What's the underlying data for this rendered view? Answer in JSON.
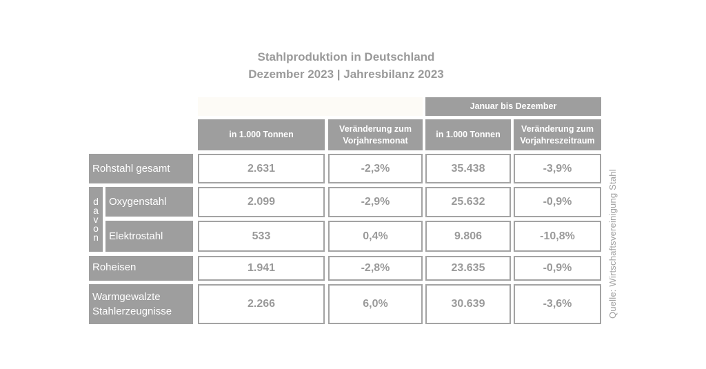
{
  "title": {
    "line1": "Stahlproduktion in Deutschland",
    "line2": "Dezember 2023 | Jahresbilanz 2023"
  },
  "headers": {
    "group": "Januar bis Dezember",
    "col1": "in 1.000 Tonnen",
    "col2_line1": "Veränderung zum",
    "col2_line2": "Vorjahresmonat",
    "col3": "in 1.000 Tonnen",
    "col4_line1": "Veränderung zum",
    "col4_line2": "Vorjahreszeitraum"
  },
  "davon_letters": [
    "d",
    "a",
    "v",
    "o",
    "n"
  ],
  "rows": [
    {
      "label": "Rohstahl gesamt",
      "values": [
        "2.631",
        "-2,3%",
        "35.438",
        "-3,9%"
      ]
    },
    {
      "label": "Oxygenstahl",
      "values": [
        "2.099",
        "-2,9%",
        "25.632",
        "-0,9%"
      ]
    },
    {
      "label": "Elektrostahl",
      "values": [
        "533",
        "0,4%",
        "9.806",
        "-10,8%"
      ]
    },
    {
      "label": "Roheisen",
      "values": [
        "1.941",
        "-2,8%",
        "23.635",
        "-0,9%"
      ]
    },
    {
      "label_line1": "Warmgewalzte",
      "label_line2": "Stahlerzeugnisse",
      "values": [
        "2.266",
        "6,0%",
        "30.639",
        "-3,6%"
      ]
    }
  ],
  "source": "Quelle: Wirtschaftsvereinigung Stahl"
}
